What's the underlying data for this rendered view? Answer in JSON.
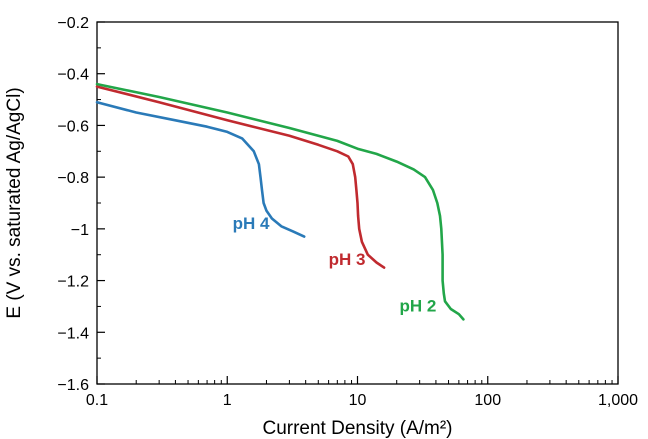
{
  "chart_data": {
    "type": "line",
    "title": "",
    "xlabel": "Current Density (A/m²)",
    "ylabel": "E (V vs. saturated Ag/AgCl)",
    "xscale": "log",
    "xlim": [
      0.1,
      1000
    ],
    "ylim": [
      -1.6,
      -0.2
    ],
    "xticks": [
      0.1,
      1,
      10,
      100,
      1000
    ],
    "xtick_labels": [
      "0.1",
      "1",
      "10",
      "100",
      "1,000"
    ],
    "yticks": [
      -0.2,
      -0.4,
      -0.6,
      -0.8,
      -1,
      -1.2,
      -1.4,
      -1.6
    ],
    "ytick_labels": [
      "−0.2",
      "−0.4",
      "−0.6",
      "−0.8",
      "−1",
      "−1.2",
      "−1.4",
      "−1.6"
    ],
    "grid": false,
    "legend": "none (series labeled inline)",
    "series": [
      {
        "name": "pH 4",
        "color": "#2a7ab8",
        "label_at": [
          1.1,
          -1.0
        ],
        "x": [
          0.1,
          0.2,
          0.4,
          0.7,
          1.0,
          1.3,
          1.6,
          1.75,
          1.8,
          1.85,
          1.9,
          2.0,
          2.2,
          2.6,
          3.2,
          3.9
        ],
        "y": [
          -0.51,
          -0.55,
          -0.58,
          -0.605,
          -0.625,
          -0.65,
          -0.7,
          -0.75,
          -0.8,
          -0.85,
          -0.9,
          -0.93,
          -0.96,
          -0.99,
          -1.01,
          -1.03
        ]
      },
      {
        "name": "pH 3",
        "color": "#c02a2f",
        "label_at": [
          6.0,
          -1.14
        ],
        "x": [
          0.1,
          0.3,
          1.0,
          3.0,
          5.0,
          7.0,
          8.5,
          9.2,
          9.6,
          9.8,
          10.0,
          10.1,
          10.3,
          10.8,
          12.0,
          14.0,
          16.0
        ],
        "y": [
          -0.45,
          -0.51,
          -0.58,
          -0.64,
          -0.675,
          -0.7,
          -0.72,
          -0.75,
          -0.8,
          -0.85,
          -0.9,
          -0.95,
          -1.0,
          -1.05,
          -1.1,
          -1.13,
          -1.15
        ]
      },
      {
        "name": "pH 2",
        "color": "#22a649",
        "label_at": [
          21.0,
          -1.32
        ],
        "x": [
          0.1,
          0.3,
          1.0,
          3.0,
          7.0,
          10.0,
          14.0,
          20.0,
          27.0,
          33.0,
          38.0,
          41.0,
          43.0,
          44.0,
          45.0,
          45.0,
          46.0,
          47.0,
          52.0,
          60.0,
          65.0
        ],
        "y": [
          -0.44,
          -0.49,
          -0.55,
          -0.61,
          -0.66,
          -0.69,
          -0.71,
          -0.74,
          -0.77,
          -0.8,
          -0.85,
          -0.9,
          -0.95,
          -1.0,
          -1.1,
          -1.2,
          -1.25,
          -1.28,
          -1.31,
          -1.33,
          -1.35
        ]
      }
    ]
  }
}
